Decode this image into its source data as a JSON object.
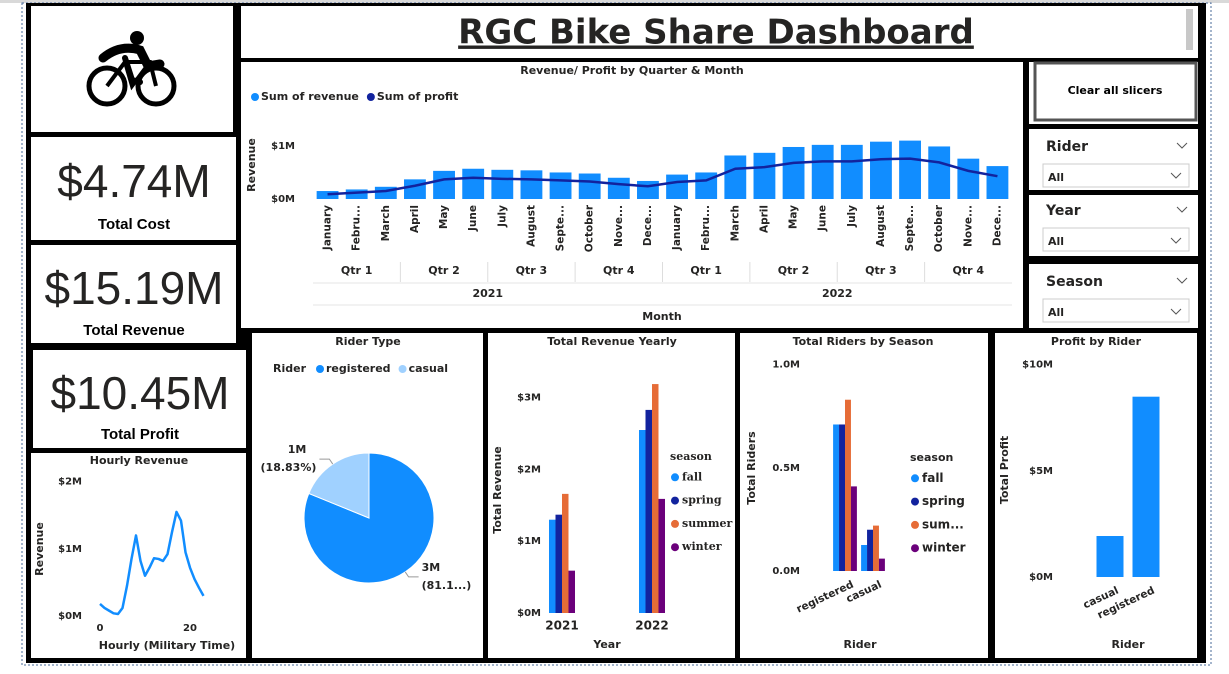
{
  "header": {
    "title": "RGC Bike Share Dashboard"
  },
  "kpis": [
    {
      "value": "$4.74M",
      "label": "Total Cost"
    },
    {
      "value": "$15.19M",
      "label": "Total Revenue"
    },
    {
      "value": "$10.45M",
      "label": "Total Profit"
    }
  ],
  "slicers": {
    "button": "Clear all slicers",
    "filters": [
      {
        "name": "Rider",
        "selection": "All"
      },
      {
        "name": "Year",
        "selection": "All"
      },
      {
        "name": "Season",
        "selection": "All"
      }
    ]
  },
  "chart_data": [
    {
      "type": "bar",
      "title": "Revenue/ Profit by Quarter & Month",
      "x_label": "Month",
      "y_label": "Revenue",
      "categories": [
        "January",
        "Febru...",
        "March",
        "April",
        "May",
        "June",
        "July",
        "August",
        "Septe...",
        "October",
        "Nove...",
        "Dece...",
        "January",
        "Febru...",
        "March",
        "April",
        "May",
        "June",
        "July",
        "August",
        "Septe...",
        "October",
        "Nove...",
        "Dece..."
      ],
      "quarters": [
        "Qtr 1",
        "Qtr 2",
        "Qtr 3",
        "Qtr 4",
        "Qtr 1",
        "Qtr 2",
        "Qtr 3",
        "Qtr 4"
      ],
      "years": [
        "2021",
        "2022"
      ],
      "series": [
        {
          "name": "Sum of revenue",
          "type": "bar",
          "color": "#118dff",
          "values": [
            0.15,
            0.18,
            0.23,
            0.37,
            0.53,
            0.57,
            0.55,
            0.54,
            0.5,
            0.48,
            0.4,
            0.34,
            0.46,
            0.5,
            0.82,
            0.87,
            0.98,
            1.02,
            1.02,
            1.08,
            1.1,
            0.99,
            0.76,
            0.62
          ]
        },
        {
          "name": "Sum of profit",
          "type": "line",
          "color": "#12239e",
          "values": [
            0.09,
            0.12,
            0.15,
            0.25,
            0.37,
            0.4,
            0.38,
            0.37,
            0.35,
            0.33,
            0.28,
            0.24,
            0.32,
            0.35,
            0.57,
            0.6,
            0.68,
            0.71,
            0.71,
            0.75,
            0.76,
            0.69,
            0.53,
            0.43
          ]
        }
      ],
      "ylim": [
        0,
        1.3
      ],
      "yticks": [
        {
          "value": 0,
          "label": "$0M"
        },
        {
          "value": 1,
          "label": "$1M"
        }
      ],
      "legend": "top-left"
    },
    {
      "type": "line",
      "title": "Hourly Revenue",
      "x_label": "Hourly (Military Time)",
      "y_label": "Revenue",
      "color": "#118dff",
      "x": [
        0,
        1,
        2,
        3,
        4,
        5,
        6,
        7,
        8,
        9,
        10,
        11,
        12,
        13,
        14,
        15,
        16,
        17,
        18,
        19,
        20,
        21,
        22,
        23
      ],
      "values": [
        0.18,
        0.12,
        0.08,
        0.04,
        0.03,
        0.12,
        0.45,
        0.85,
        1.2,
        0.82,
        0.6,
        0.72,
        0.86,
        0.85,
        0.82,
        0.92,
        1.25,
        1.55,
        1.42,
        0.95,
        0.72,
        0.55,
        0.42,
        0.3
      ],
      "xlim": [
        0,
        23
      ],
      "xticks": [
        0,
        20
      ],
      "ylim": [
        0,
        2.1
      ],
      "yticks": [
        {
          "value": 0,
          "label": "$0M"
        },
        {
          "value": 1,
          "label": "$1M"
        },
        {
          "value": 2,
          "label": "$2M"
        }
      ]
    },
    {
      "type": "pie",
      "title": "Rider Type",
      "legend_title": "Rider",
      "legend": "top-left",
      "categories": [
        "registered",
        "casual"
      ],
      "colors": [
        "#118dff",
        "#a0d1ff"
      ],
      "values": [
        2672614,
        620017
      ],
      "value_labels": [
        "3M",
        "1M"
      ],
      "percent_labels": [
        "(81.1...)",
        "(18.83%)"
      ]
    },
    {
      "type": "grouped_bar",
      "title": "Total Revenue Yearly",
      "x_label": "Year",
      "y_label": "Total Revenue",
      "legend_title": "season",
      "legend": "right",
      "categories": [
        "2021",
        "2022"
      ],
      "series": [
        {
          "name": "fall",
          "color": "#118dff",
          "values": [
            1.3,
            2.55
          ]
        },
        {
          "name": "spring",
          "color": "#12239e",
          "values": [
            1.37,
            2.83
          ]
        },
        {
          "name": "summer",
          "color": "#e66c37",
          "values": [
            1.66,
            3.19
          ]
        },
        {
          "name": "winter",
          "color": "#6b007b",
          "values": [
            0.59,
            1.59
          ]
        }
      ],
      "ylim": [
        0,
        3.4
      ],
      "yticks": [
        {
          "value": 0,
          "label": "$0M"
        },
        {
          "value": 1,
          "label": "$1M"
        },
        {
          "value": 2,
          "label": "$2M"
        },
        {
          "value": 3,
          "label": "$3M"
        }
      ]
    },
    {
      "type": "grouped_bar",
      "title": "Total Riders by Season",
      "x_label": "Rider",
      "y_label": "Total Riders",
      "legend_title": "season",
      "legend": "right",
      "rotate_labels": true,
      "categories": [
        "registered",
        "casual"
      ],
      "series": [
        {
          "name": "fall",
          "color": "#118dff",
          "values": [
            0.71,
            0.126
          ]
        },
        {
          "name": "spring",
          "color": "#12239e",
          "values": [
            0.71,
            0.2
          ]
        },
        {
          "name": "sum...",
          "color": "#e66c37",
          "values": [
            0.83,
            0.22
          ]
        },
        {
          "name": "winter",
          "color": "#6b007b",
          "values": [
            0.41,
            0.06
          ]
        }
      ],
      "ylim": [
        0,
        1.1
      ],
      "yticks": [
        {
          "value": 0,
          "label": "0.0M"
        },
        {
          "value": 0.5,
          "label": "0.5M"
        },
        {
          "value": 1,
          "label": "1.0M"
        }
      ]
    },
    {
      "type": "bar",
      "title": "Profit by Rider",
      "x_label": "Rider",
      "y_label": "Total Profit",
      "color": "#118dff",
      "rotate_labels": true,
      "categories": [
        "casual",
        "registered"
      ],
      "values": [
        1.93,
        8.49
      ],
      "ylim": [
        0,
        10.5
      ],
      "yticks": [
        {
          "value": 0,
          "label": "$0M"
        },
        {
          "value": 5,
          "label": "$5M"
        },
        {
          "value": 10,
          "label": "$10M"
        }
      ]
    }
  ]
}
